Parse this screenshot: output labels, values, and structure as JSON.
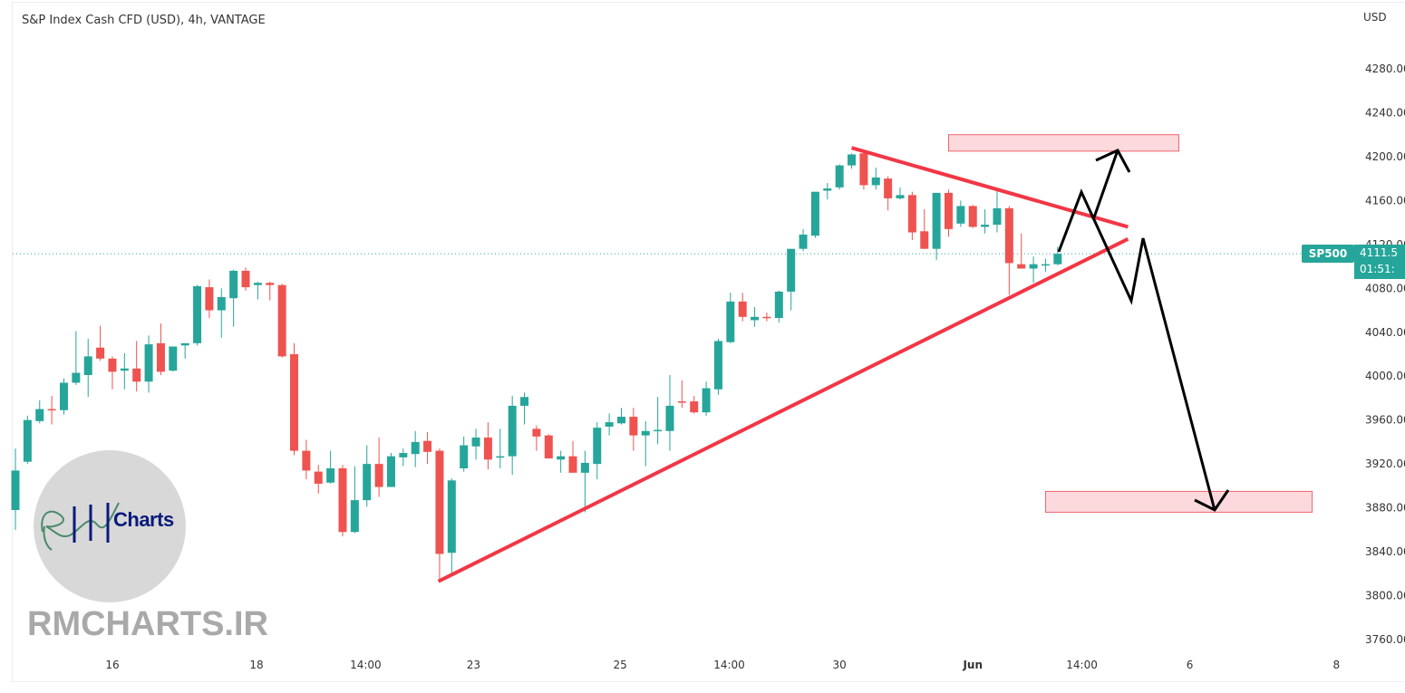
{
  "header": {
    "title": "S&P Index Cash CFD (USD), 4h, VANTAGE",
    "currency": "USD"
  },
  "price_badge": {
    "symbol": "SP500",
    "price": "4111.5",
    "timer": "01:51:"
  },
  "watermark": {
    "site": "RMCHARTS.IR",
    "logo_text": "Charts",
    "logo_script": "RM"
  },
  "colors": {
    "up": "#26a69a",
    "down": "#ef5350",
    "trendline": "#f23645",
    "zone_fill": "#fcd9dc",
    "zone_border": "#f06470",
    "arrow": "#000000"
  },
  "chart_data": {
    "type": "candlestick",
    "title": "S&P Index Cash CFD (USD), 4h, VANTAGE",
    "ylabel": "USD",
    "ylim": [
      3740,
      4300
    ],
    "last_price": 4111.5,
    "y_ticks": [
      {
        "value": 4280,
        "label": "4280.00"
      },
      {
        "value": 4240,
        "label": "4240.00"
      },
      {
        "value": 4200,
        "label": "4200.00"
      },
      {
        "value": 4160,
        "label": "4160.00"
      },
      {
        "value": 4120,
        "label": "4120.00"
      },
      {
        "value": 4080,
        "label": "4080.00"
      },
      {
        "value": 4040,
        "label": "4040.00"
      },
      {
        "value": 4000,
        "label": "4000.00"
      },
      {
        "value": 3960,
        "label": "3960.00"
      },
      {
        "value": 3920,
        "label": "3920.00"
      },
      {
        "value": 3880,
        "label": "3880.00"
      },
      {
        "value": 3840,
        "label": "3840.00"
      },
      {
        "value": 3800,
        "label": "3800.00"
      },
      {
        "value": 3760,
        "label": "3760.00"
      }
    ],
    "x_ticks": [
      {
        "bar": 8,
        "label": "16"
      },
      {
        "bar": 19.9,
        "label": "18"
      },
      {
        "bar": 28.9,
        "label": "14:00"
      },
      {
        "bar": 37.8,
        "label": "23"
      },
      {
        "bar": 49.9,
        "label": "25"
      },
      {
        "bar": 58.9,
        "label": "14:00"
      },
      {
        "bar": 68,
        "label": "30"
      },
      {
        "bar": 79,
        "label": "Jun",
        "bold": true
      },
      {
        "bar": 88,
        "label": "14:00"
      },
      {
        "bar": 96.9,
        "label": "6"
      },
      {
        "bar": 109,
        "label": "8"
      }
    ],
    "ohlc": [
      [
        3878,
        3934,
        3860,
        3914
      ],
      [
        3922,
        3964,
        3920,
        3960
      ],
      [
        3959,
        3978,
        3957,
        3970
      ],
      [
        3970,
        3982,
        3956,
        3969
      ],
      [
        3969,
        3998,
        3965,
        3994
      ],
      [
        3994,
        4041,
        3992,
        4003
      ],
      [
        4001,
        4034,
        3981,
        4018
      ],
      [
        4026,
        4046,
        4014,
        4016
      ],
      [
        4016,
        4018,
        3988,
        4004
      ],
      [
        4005,
        4021,
        3988,
        4007
      ],
      [
        4007,
        4032,
        3986,
        3995
      ],
      [
        3995,
        4037,
        3985,
        4029
      ],
      [
        4030,
        4048,
        4001,
        4004
      ],
      [
        4005,
        4027,
        4004,
        4027
      ],
      [
        4028,
        4030,
        4016,
        4030
      ],
      [
        4030,
        4083,
        4028,
        4082
      ],
      [
        4081,
        4088,
        4053,
        4060
      ],
      [
        4060,
        4080,
        4035,
        4072
      ],
      [
        4071,
        4097,
        4045,
        4096
      ],
      [
        4096,
        4099,
        4078,
        4081
      ],
      [
        4083,
        4086,
        4070,
        4085
      ],
      [
        4085,
        4086,
        4069,
        4083
      ],
      [
        4083,
        4084,
        4017,
        4018
      ],
      [
        4020,
        4030,
        3928,
        3932
      ],
      [
        3932,
        3942,
        3906,
        3914
      ],
      [
        3913,
        3919,
        3893,
        3902
      ],
      [
        3903,
        3932,
        3902,
        3916
      ],
      [
        3916,
        3919,
        3854,
        3858
      ],
      [
        3858,
        3918,
        3857,
        3887
      ],
      [
        3887,
        3937,
        3881,
        3920
      ],
      [
        3920,
        3944,
        3890,
        3899
      ],
      [
        3899,
        3930,
        3899,
        3927
      ],
      [
        3926,
        3934,
        3918,
        3930
      ],
      [
        3929,
        3950,
        3917,
        3940
      ],
      [
        3941,
        3949,
        3920,
        3931
      ],
      [
        3932,
        3934,
        3812,
        3838
      ],
      [
        3839,
        3907,
        3818,
        3905
      ],
      [
        3916,
        3945,
        3913,
        3937
      ],
      [
        3936,
        3952,
        3924,
        3944
      ],
      [
        3944,
        3958,
        3915,
        3924
      ],
      [
        3926,
        3952,
        3916,
        3927
      ],
      [
        3927,
        3982,
        3910,
        3973
      ],
      [
        3973,
        3985,
        3956,
        3981
      ],
      [
        3952,
        3955,
        3932,
        3945
      ],
      [
        3946,
        3947,
        3925,
        3925
      ],
      [
        3924,
        3932,
        3912,
        3927
      ],
      [
        3927,
        3941,
        3912,
        3912
      ],
      [
        3912,
        3932,
        3876,
        3921
      ],
      [
        3920,
        3958,
        3906,
        3953
      ],
      [
        3954,
        3966,
        3946,
        3958
      ],
      [
        3957,
        3971,
        3956,
        3963
      ],
      [
        3963,
        3971,
        3932,
        3946
      ],
      [
        3946,
        3959,
        3918,
        3950
      ],
      [
        3950,
        3981,
        3938,
        3951
      ],
      [
        3950,
        4001,
        3932,
        3973
      ],
      [
        3977,
        3996,
        3971,
        3976
      ],
      [
        3977,
        3982,
        3966,
        3967
      ],
      [
        3967,
        3995,
        3964,
        3989
      ],
      [
        3988,
        4034,
        3983,
        4032
      ],
      [
        4031,
        4076,
        4030,
        4068
      ],
      [
        4068,
        4076,
        4050,
        4054
      ],
      [
        4051,
        4063,
        4045,
        4054
      ],
      [
        4054,
        4058,
        4050,
        4053
      ],
      [
        4053,
        4078,
        4049,
        4077
      ],
      [
        4077,
        4116,
        4060,
        4116
      ],
      [
        4116,
        4134,
        4114,
        4129
      ],
      [
        4128,
        4167,
        4126,
        4168
      ],
      [
        4169,
        4176,
        4161,
        4171
      ],
      [
        4172,
        4193,
        4170,
        4192
      ],
      [
        4192,
        4203,
        4189,
        4202
      ],
      [
        4203,
        4204,
        4170,
        4174
      ],
      [
        4174,
        4190,
        4170,
        4181
      ],
      [
        4180,
        4182,
        4151,
        4162
      ],
      [
        4162,
        4172,
        4161,
        4165
      ],
      [
        4165,
        4168,
        4124,
        4131
      ],
      [
        4132,
        4152,
        4116,
        4116
      ],
      [
        4116,
        4167,
        4106,
        4167
      ],
      [
        4167,
        4170,
        4127,
        4134
      ],
      [
        4139,
        4160,
        4136,
        4155
      ],
      [
        4155,
        4156,
        4135,
        4136
      ],
      [
        4136,
        4152,
        4130,
        4138
      ],
      [
        4138,
        4169,
        4131,
        4153
      ],
      [
        4153,
        4155,
        4074,
        4103
      ],
      [
        4102,
        4130,
        4098,
        4098
      ],
      [
        4098,
        4109,
        4085,
        4102
      ],
      [
        4101,
        4107,
        4095,
        4102
      ],
      [
        4102,
        4118,
        4101,
        4111.5
      ]
    ],
    "trendlines": [
      {
        "name": "rising-support",
        "from": {
          "bar": 34.9,
          "price": 3813
        },
        "to": {
          "bar": 91.8,
          "price": 4125
        }
      },
      {
        "name": "falling-resistance",
        "from": {
          "bar": 69,
          "price": 4208
        },
        "to": {
          "bar": 91.8,
          "price": 4136
        }
      }
    ],
    "zones": [
      {
        "name": "upper-target-zone",
        "bar_from": 77,
        "bar_to": 96,
        "price_top": 4220,
        "price_bottom": 4205
      },
      {
        "name": "lower-target-zone",
        "bar_from": 85,
        "bar_to": 107,
        "price_top": 3895,
        "price_bottom": 3876
      }
    ]
  }
}
